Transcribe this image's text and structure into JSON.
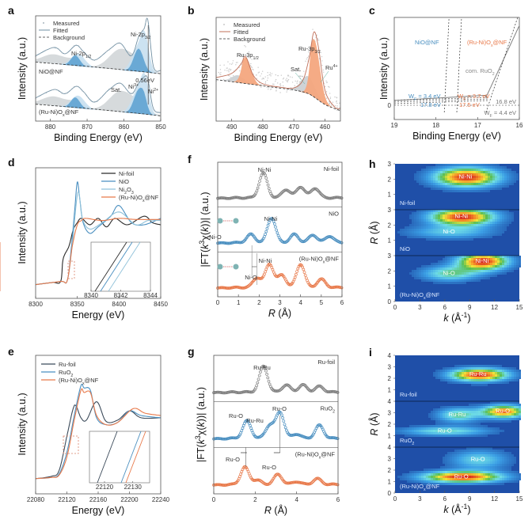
{
  "figure": {
    "colors": {
      "blue": "#4a8fc0",
      "orange": "#e8794a",
      "gray": "#808080",
      "dark": "#2b2b2b",
      "lightblue": "#8fc1d9",
      "fill_gray": "#cfd3d6",
      "fill_blue": "#5fa3d1",
      "fill_lightblue": "#c7dfef",
      "fill_orange": "#f4a77e",
      "wavelet_bg": "#1f4fa8"
    }
  },
  "chart_data": [
    {
      "id": "a",
      "panel_label": "a",
      "type": "line",
      "title": "",
      "xlabel": "Binding Energy (eV)",
      "ylabel": "Intensity (a.u.)",
      "xlim": [
        884,
        850
      ],
      "xticks": [
        "880",
        "870",
        "860",
        "850"
      ],
      "legend": [
        "Measured",
        "Fitted",
        "Background"
      ],
      "legend_position": "top-left",
      "annotations": [
        "Ni-2p1/2",
        "Ni-2p3/2",
        "0.56eV",
        "Sat.",
        "Ni3+",
        "Ni2+"
      ],
      "series_labels": [
        "NiO@NF",
        "(Ru-Ni)Ox@NF"
      ],
      "series": [
        {
          "name": "NiO@NF",
          "x": [
            884,
            879,
            876,
            873,
            871,
            868,
            864,
            861,
            858,
            856,
            854.5,
            853.5,
            852,
            850
          ],
          "values": [
            0.62,
            0.7,
            0.64,
            0.72,
            0.66,
            0.58,
            0.68,
            0.74,
            0.62,
            0.8,
            0.88,
            0.96,
            0.52,
            0.48
          ]
        },
        {
          "name": "(Ru-Ni)Ox@NF",
          "x": [
            884,
            879,
            876,
            873,
            871,
            868,
            864,
            861,
            858,
            856,
            854.5,
            853.5,
            852,
            850
          ],
          "values": [
            0.22,
            0.3,
            0.26,
            0.33,
            0.28,
            0.18,
            0.3,
            0.36,
            0.26,
            0.36,
            0.42,
            0.4,
            0.12,
            0.08
          ]
        }
      ]
    },
    {
      "id": "b",
      "panel_label": "b",
      "type": "line",
      "xlabel": "Binding Energy (eV)",
      "ylabel": "Intensity (a.u.)",
      "xlim": [
        495,
        455
      ],
      "xticks": [
        "490",
        "480",
        "470",
        "460"
      ],
      "legend": [
        "Measured",
        "Fitted",
        "Background"
      ],
      "legend_position": "top-left",
      "annotations": [
        "Ru-3p1/2",
        "Ru-3p3/2",
        "Sat.",
        "Ru4+"
      ],
      "series": [
        {
          "name": "Fitted",
          "x": [
            495,
            490,
            487,
            485.5,
            483,
            480,
            475,
            470,
            467,
            465,
            463.5,
            462,
            460,
            457,
            455
          ],
          "values": [
            0.42,
            0.46,
            0.55,
            0.62,
            0.44,
            0.36,
            0.33,
            0.32,
            0.4,
            0.62,
            0.86,
            0.7,
            0.3,
            0.14,
            0.12
          ]
        },
        {
          "name": "Background",
          "x": [
            495,
            485,
            475,
            470,
            465,
            460,
            455
          ],
          "values": [
            0.4,
            0.36,
            0.32,
            0.3,
            0.26,
            0.16,
            0.1
          ]
        }
      ]
    },
    {
      "id": "c",
      "panel_label": "c",
      "type": "line",
      "xlabel": "Binding Energy (eV)",
      "ylabel": "Intensity (a.u.)",
      "xlim": [
        19,
        16
      ],
      "xticks": [
        "19",
        "18",
        "17",
        "16"
      ],
      "ytick": "0",
      "annotations": [
        "NiO@NF",
        "(Ru-Ni)Ox@NF",
        "com. RuO2",
        "WF = 3.4 eV",
        "17.8 eV",
        "WF = 3.7 eV",
        "17.5 eV",
        "16.8 eV",
        "WF = 4.4 eV"
      ],
      "series": [
        {
          "name": "NiO@NF",
          "cutoff_eV": 17.8,
          "work_function_eV": 3.4
        },
        {
          "name": "(Ru-Ni)Ox@NF",
          "cutoff_eV": 17.5,
          "work_function_eV": 3.7
        },
        {
          "name": "com. RuO2",
          "cutoff_eV": 16.8,
          "work_function_eV": 4.4
        }
      ]
    },
    {
      "id": "d",
      "panel_label": "d",
      "type": "line",
      "xlabel": "Energy (eV)",
      "ylabel": "Intensity (a.u.)",
      "xlim": [
        8300,
        8450
      ],
      "xticks": [
        "8300",
        "8350",
        "8400",
        "8450"
      ],
      "legend": [
        "Ni-foil",
        "NiO",
        "Ni2O3",
        "(Ru-Ni)Ox@NF"
      ],
      "legend_position": "top-right",
      "inset": {
        "xlim": [
          8340,
          8344
        ],
        "xticks": [
          "8340",
          "8342",
          "8344"
        ]
      },
      "series": [
        {
          "name": "Ni-foil",
          "x": [
            8300,
            8320,
            8330,
            8333,
            8340,
            8345,
            8350,
            8355,
            8365,
            8375,
            8385,
            8395,
            8410,
            8430,
            8440,
            8450
          ],
          "values": [
            0.04,
            0.06,
            0.07,
            0.28,
            0.4,
            0.55,
            0.62,
            0.66,
            0.6,
            0.66,
            0.58,
            0.66,
            0.6,
            0.68,
            0.62,
            0.6
          ]
        },
        {
          "name": "NiO",
          "x": [
            8300,
            8330,
            8338,
            8343,
            8347,
            8350,
            8353,
            8357,
            8365,
            8375,
            8390,
            8400,
            8415,
            8430,
            8450
          ],
          "values": [
            0.04,
            0.07,
            0.08,
            0.4,
            0.75,
            1.0,
            0.84,
            0.62,
            0.52,
            0.58,
            0.68,
            0.78,
            0.62,
            0.6,
            0.66
          ]
        },
        {
          "name": "Ni2O3",
          "x": [
            8300,
            8330,
            8338,
            8344,
            8349,
            8352,
            8356,
            8365,
            8380,
            8400,
            8420,
            8435,
            8450
          ],
          "values": [
            0.04,
            0.07,
            0.08,
            0.42,
            0.82,
            0.9,
            0.66,
            0.56,
            0.62,
            0.72,
            0.6,
            0.64,
            0.64
          ]
        },
        {
          "name": "(Ru-Ni)Ox@NF",
          "x": [
            8300,
            8330,
            8338,
            8344,
            8350,
            8355,
            8360,
            8380,
            8400,
            8420,
            8450
          ],
          "values": [
            0.04,
            0.07,
            0.08,
            0.4,
            0.6,
            0.64,
            0.66,
            0.64,
            0.66,
            0.65,
            0.65
          ]
        }
      ]
    },
    {
      "id": "e",
      "panel_label": "e",
      "type": "line",
      "xlabel": "Energy (eV)",
      "ylabel": "Intensity (a.u.)",
      "xlim": [
        22080,
        22240
      ],
      "xticks": [
        "22080",
        "22120",
        "22160",
        "22200",
        "22240"
      ],
      "legend": [
        "Ru-foil",
        "RuO2",
        "(Ru-Ni)Ox@NF"
      ],
      "legend_position": "top-left",
      "inset": {
        "xlim": [
          22116,
          22134
        ],
        "xticks": [
          "22120",
          "22130"
        ]
      },
      "series": [
        {
          "name": "Ru-foil",
          "x": [
            22080,
            22100,
            22110,
            22120,
            22128,
            22132,
            22138,
            22145,
            22158,
            22170,
            22185,
            22200,
            22215,
            22240
          ],
          "values": [
            0.05,
            0.07,
            0.12,
            0.42,
            0.66,
            0.68,
            0.58,
            0.56,
            0.72,
            0.55,
            0.56,
            0.64,
            0.58,
            0.58
          ]
        },
        {
          "name": "RuO2",
          "x": [
            22080,
            22100,
            22110,
            22120,
            22130,
            22138,
            22142,
            22150,
            22158,
            22170,
            22185,
            22200,
            22215,
            22240
          ],
          "values": [
            0.05,
            0.06,
            0.09,
            0.28,
            0.62,
            0.86,
            0.84,
            0.82,
            0.58,
            0.52,
            0.54,
            0.64,
            0.6,
            0.58
          ]
        },
        {
          "name": "(Ru-Ni)Ox@NF",
          "x": [
            22080,
            22100,
            22110,
            22120,
            22130,
            22138,
            22142,
            22150,
            22158,
            22170,
            22185,
            22205,
            22220,
            22240
          ],
          "values": [
            0.05,
            0.06,
            0.08,
            0.24,
            0.58,
            0.82,
            0.8,
            0.8,
            0.6,
            0.52,
            0.54,
            0.66,
            0.62,
            0.6
          ]
        }
      ]
    },
    {
      "id": "f",
      "panel_label": "f",
      "type": "scatter",
      "xlabel": "R (Å)",
      "ylabel": "|FT(k³χ(k))| (a.u.)",
      "xlim": [
        0,
        6
      ],
      "xticks": [
        "0",
        "1",
        "2",
        "3",
        "4",
        "5",
        "6"
      ],
      "subpanels": [
        {
          "name": "Ni-foil",
          "annotations": [
            "Ni-Ni"
          ],
          "peaks": [
            {
              "R": 2.2,
              "h": 0.9
            },
            {
              "R": 3.3,
              "h": 0.3
            },
            {
              "R": 4.0,
              "h": 0.4
            },
            {
              "R": 4.7,
              "h": 0.35
            }
          ]
        },
        {
          "name": "NiO",
          "annotations": [
            "Ni-O",
            "Ni-Ni"
          ],
          "peaks": [
            {
              "R": 1.6,
              "h": 0.3
            },
            {
              "R": 2.6,
              "h": 0.9
            },
            {
              "R": 3.7,
              "h": 0.3
            },
            {
              "R": 4.6,
              "h": 0.28
            },
            {
              "R": 5.4,
              "h": 0.24
            }
          ]
        },
        {
          "name": "(Ru-Ni)Ox@NF",
          "annotations": [
            "Ni-O",
            "Ni-Ni"
          ],
          "peaks": [
            {
              "R": 1.9,
              "h": 0.35
            },
            {
              "R": 2.5,
              "h": 0.85
            },
            {
              "R": 3.1,
              "h": 0.45
            },
            {
              "R": 4.0,
              "h": 0.85
            },
            {
              "R": 5.0,
              "h": 0.3
            }
          ]
        }
      ]
    },
    {
      "id": "g",
      "panel_label": "g",
      "type": "scatter",
      "xlabel": "R (Å)",
      "ylabel": "|FT(k³χ(k))| (a.u.)",
      "xlim": [
        0,
        6
      ],
      "xticks": [
        "0",
        "2",
        "4",
        "6"
      ],
      "subpanels": [
        {
          "name": "Ru-foil",
          "annotations": [
            "Ru-Ru"
          ],
          "peaks": [
            {
              "R": 2.4,
              "h": 0.9
            },
            {
              "R": 3.5,
              "h": 0.25
            },
            {
              "R": 4.3,
              "h": 0.25
            },
            {
              "R": 5.1,
              "h": 0.2
            }
          ]
        },
        {
          "name": "RuO2",
          "annotations": [
            "Ru-O",
            "Ru-Ru",
            "Ru-O"
          ],
          "peaks": [
            {
              "R": 1.6,
              "h": 0.6
            },
            {
              "R": 2.7,
              "h": 0.45
            },
            {
              "R": 3.2,
              "h": 0.9
            },
            {
              "R": 4.0,
              "h": 0.15
            },
            {
              "R": 5.1,
              "h": 0.45
            }
          ]
        },
        {
          "name": "(Ru-Ni)Ox@NF",
          "annotations": [
            "Ru-O",
            "Ru-O"
          ],
          "peaks": [
            {
              "R": 1.5,
              "h": 0.6
            },
            {
              "R": 2.1,
              "h": 0.15
            },
            {
              "R": 3.1,
              "h": 0.35
            },
            {
              "R": 4.0,
              "h": 0.1
            },
            {
              "R": 5.0,
              "h": 0.2
            }
          ]
        }
      ]
    },
    {
      "id": "h",
      "panel_label": "h",
      "type": "heatmap",
      "xlabel": "k (Å⁻¹)",
      "ylabel": "R (Å)",
      "xlim": [
        0,
        15
      ],
      "xticks": [
        "0",
        "3",
        "6",
        "9",
        "12",
        "15"
      ],
      "subpanels": [
        {
          "name": "Ni-foil",
          "ylim": [
            0,
            3
          ],
          "yticks": [
            "1",
            "2",
            "3"
          ],
          "blobs": [
            {
              "label": "Ni-Ni",
              "k": 8.5,
              "R": 2.2,
              "intensity": 1.0,
              "spread_k": 4.5,
              "spread_R": 0.45
            }
          ]
        },
        {
          "name": "NiO",
          "ylim": [
            0,
            3
          ],
          "yticks": [
            "1",
            "2",
            "3"
          ],
          "blobs": [
            {
              "label": "Ni-Ni",
              "k": 8.0,
              "R": 2.6,
              "intensity": 1.0,
              "spread_k": 4.5,
              "spread_R": 0.4
            },
            {
              "label": "Ni-O",
              "k": 6.5,
              "R": 1.6,
              "intensity": 0.35,
              "spread_k": 6.0,
              "spread_R": 0.3
            }
          ]
        },
        {
          "name": "(Ru-Ni)Ox@NF",
          "ylim": [
            0,
            3
          ],
          "yticks": [
            "0",
            "1",
            "2",
            "3"
          ],
          "blobs": [
            {
              "label": "Ni-Ni",
              "k": 10.5,
              "R": 2.7,
              "intensity": 1.0,
              "spread_k": 3.5,
              "spread_R": 0.4
            },
            {
              "label": "Ni-O",
              "k": 6.5,
              "R": 1.9,
              "intensity": 0.5,
              "spread_k": 4.0,
              "spread_R": 0.35
            }
          ]
        }
      ]
    },
    {
      "id": "i",
      "panel_label": "i",
      "type": "heatmap",
      "xlabel": "k (Å⁻¹)",
      "ylabel": "R (Å)",
      "xlim": [
        0,
        15
      ],
      "xticks": [
        "0",
        "3",
        "6",
        "9",
        "12",
        "15"
      ],
      "subpanels": [
        {
          "name": "Ru-foil",
          "ylim": [
            0,
            4
          ],
          "yticks": [
            "1",
            "2",
            "3",
            "4"
          ],
          "blobs": [
            {
              "label": "Ru-Ru",
              "k": 10.0,
              "R": 2.4,
              "intensity": 1.0,
              "spread_k": 4.0,
              "spread_R": 0.4
            }
          ]
        },
        {
          "name": "RuO2",
          "ylim": [
            0,
            4
          ],
          "yticks": [
            "1",
            "2",
            "3",
            "4"
          ],
          "blobs": [
            {
              "label": "Ru-O",
              "k": 13.0,
              "R": 3.2,
              "intensity": 0.9,
              "spread_k": 3.0,
              "spread_R": 0.4
            },
            {
              "label": "Ru-Ru",
              "k": 7.5,
              "R": 2.9,
              "intensity": 0.5,
              "spread_k": 3.0,
              "spread_R": 0.45
            },
            {
              "label": "Ru-O",
              "k": 6.0,
              "R": 1.5,
              "intensity": 0.45,
              "spread_k": 6.0,
              "spread_R": 0.3
            }
          ]
        },
        {
          "name": "(Ru-Ni)Ox@NF",
          "ylim": [
            0,
            4
          ],
          "yticks": [
            "0",
            "1",
            "2",
            "3",
            "4"
          ],
          "blobs": [
            {
              "label": "Ru-O",
              "k": 8.0,
              "R": 1.5,
              "intensity": 1.0,
              "spread_k": 5.5,
              "spread_R": 0.35
            },
            {
              "label": "Ru-O",
              "k": 10.0,
              "R": 3.0,
              "intensity": 0.4,
              "spread_k": 4.0,
              "spread_R": 0.6
            }
          ]
        }
      ]
    }
  ]
}
